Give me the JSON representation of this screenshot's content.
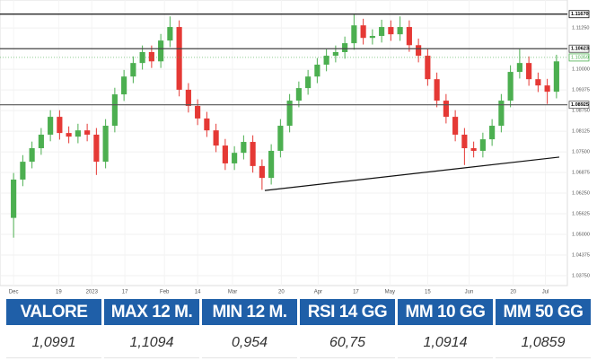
{
  "chart_data": {
    "type": "candlestick",
    "open": [
      1.055,
      1.0666,
      1.072,
      1.0761,
      1.0802,
      1.0856,
      1.0807,
      1.0796,
      1.0815,
      1.0802,
      1.072,
      1.0829,
      1.0924,
      1.0978,
      1.1019,
      1.1052,
      1.1024,
      1.1087,
      1.1128,
      1.0938,
      1.0889,
      1.0851,
      1.0815,
      1.0769,
      1.0715,
      1.0747,
      1.078,
      1.0707,
      1.0671,
      1.0753,
      1.0829,
      1.0905,
      1.0943,
      1.0978,
      1.1014,
      1.1041,
      1.1052,
      1.1079,
      1.1133,
      1.1095,
      1.1101,
      1.1128,
      1.1106,
      1.1128,
      1.1073,
      1.1041,
      1.097,
      1.0905,
      1.0856,
      1.0802,
      1.0761,
      1.0753,
      1.0788,
      1.0829,
      1.0905,
      1.0992,
      1.1019,
      1.097,
      1.0951,
      1.0932
    ],
    "high": [
      1.0686,
      1.074,
      1.0781,
      1.0822,
      1.0876,
      1.0876,
      1.0827,
      1.0835,
      1.0835,
      1.0822,
      1.0849,
      1.0944,
      1.0998,
      1.1039,
      1.1072,
      1.1072,
      1.1107,
      1.116,
      1.1148,
      1.0958,
      1.0909,
      1.0871,
      1.0835,
      1.0789,
      1.0767,
      1.08,
      1.08,
      1.0727,
      1.0773,
      1.0849,
      1.0925,
      1.0963,
      1.0998,
      1.1034,
      1.1061,
      1.1072,
      1.1099,
      1.1165,
      1.1153,
      1.1121,
      1.115,
      1.1148,
      1.116,
      1.1148,
      1.1093,
      1.1061,
      1.099,
      1.0925,
      1.0876,
      1.0822,
      1.0781,
      1.0808,
      1.0849,
      1.0925,
      1.1012,
      1.1062,
      1.1039,
      1.099,
      1.0971,
      1.1044
    ],
    "low": [
      1.049,
      1.0646,
      1.07,
      1.0741,
      1.0782,
      1.0787,
      1.0776,
      1.0776,
      1.0782,
      1.068,
      1.07,
      1.0809,
      1.0904,
      1.0958,
      1.0999,
      1.1004,
      1.1004,
      1.1067,
      1.0918,
      1.0869,
      1.0831,
      1.0795,
      1.0749,
      1.0695,
      1.0695,
      1.0727,
      1.0687,
      1.0635,
      1.0651,
      1.0733,
      1.0809,
      1.0885,
      1.0923,
      1.0958,
      1.0994,
      1.1021,
      1.1032,
      1.1059,
      1.1075,
      1.1075,
      1.1081,
      1.1086,
      1.1086,
      1.1053,
      1.1021,
      1.095,
      1.0885,
      1.0836,
      1.0782,
      1.071,
      1.0733,
      1.0733,
      1.0768,
      1.0809,
      1.0885,
      1.0972,
      1.095,
      1.0931,
      1.0895,
      1.0912
    ],
    "close": [
      1.0666,
      1.072,
      1.0761,
      1.0802,
      1.0856,
      1.0807,
      1.0796,
      1.0815,
      1.0802,
      1.072,
      1.0829,
      1.0924,
      1.0978,
      1.1019,
      1.1052,
      1.1024,
      1.1087,
      1.1128,
      1.0938,
      1.0889,
      1.0851,
      1.0815,
      1.0769,
      1.0715,
      1.0747,
      1.078,
      1.0707,
      1.0671,
      1.0753,
      1.0829,
      1.0905,
      1.0943,
      1.0978,
      1.1014,
      1.1041,
      1.1052,
      1.1079,
      1.1133,
      1.1095,
      1.1101,
      1.1128,
      1.1106,
      1.1128,
      1.1073,
      1.1041,
      1.097,
      1.0905,
      1.0856,
      1.0802,
      1.0761,
      1.0753,
      1.0788,
      1.0829,
      1.0905,
      1.0992,
      1.1019,
      1.097,
      1.0951,
      1.0932,
      1.1024
    ],
    "up_color": "#4caf50",
    "down_color": "#e53935",
    "xlim": [
      0,
      60
    ],
    "xticks": [
      {
        "value": 0.5,
        "label": "Dec"
      },
      {
        "value": 5.4,
        "label": "19"
      },
      {
        "value": 9,
        "label": "2023"
      },
      {
        "value": 12.6,
        "label": "17"
      },
      {
        "value": 16.9,
        "label": "Feb"
      },
      {
        "value": 20.5,
        "label": "14"
      },
      {
        "value": 24.3,
        "label": "Mar"
      },
      {
        "value": 29.6,
        "label": "20"
      },
      {
        "value": 33.6,
        "label": "Apr"
      },
      {
        "value": 37.7,
        "label": "17"
      },
      {
        "value": 41.4,
        "label": "May"
      },
      {
        "value": 45.5,
        "label": "15"
      },
      {
        "value": 50,
        "label": "Jun"
      },
      {
        "value": 54.8,
        "label": "20"
      },
      {
        "value": 58.3,
        "label": "Jul"
      }
    ],
    "ylim": [
      1.0345,
      1.1188
    ],
    "yticks": [
      {
        "value": 1.0375,
        "label": "1.03750"
      },
      {
        "value": 1.04375,
        "label": "1.04375"
      },
      {
        "value": 1.05,
        "label": "1.05000"
      },
      {
        "value": 1.05625,
        "label": "1.05625"
      },
      {
        "value": 1.0625,
        "label": "1.06250"
      },
      {
        "value": 1.06875,
        "label": "1.06875"
      },
      {
        "value": 1.075,
        "label": "1.07500"
      },
      {
        "value": 1.08125,
        "label": "1.08125"
      },
      {
        "value": 1.0875,
        "label": "1.08750"
      },
      {
        "value": 1.09375,
        "label": "1.09375"
      },
      {
        "value": 1.1,
        "label": "1.10000"
      },
      {
        "value": 1.10625,
        "label": "1.10625"
      },
      {
        "value": 1.1125,
        "label": "1.11250"
      }
    ],
    "grid": true,
    "levels": [
      {
        "value": 1.1167,
        "label": "1.11670",
        "color": "#111111"
      },
      {
        "value": 1.10623,
        "label": "1.10623",
        "color": "#444444"
      },
      {
        "value": 1.08925,
        "label": "1.08925",
        "color": "#555555"
      }
    ],
    "last_price": {
      "value": 1.10359,
      "label": "1.10359",
      "color": "#4caf50"
    },
    "trendline": {
      "x": [
        27.8,
        59.8
      ],
      "y": [
        1.0633,
        1.0734
      ],
      "color": "#111111"
    }
  },
  "table": {
    "headers": [
      "VALORE",
      "MAX 12 M.",
      "MIN 12 M.",
      "RSI 14 GG",
      "MM 10 GG",
      "MM 50 GG"
    ],
    "rows": [
      [
        "1,0991",
        "1,1094",
        "0,954",
        "60,75",
        "1,0914",
        "1,0859"
      ]
    ]
  }
}
